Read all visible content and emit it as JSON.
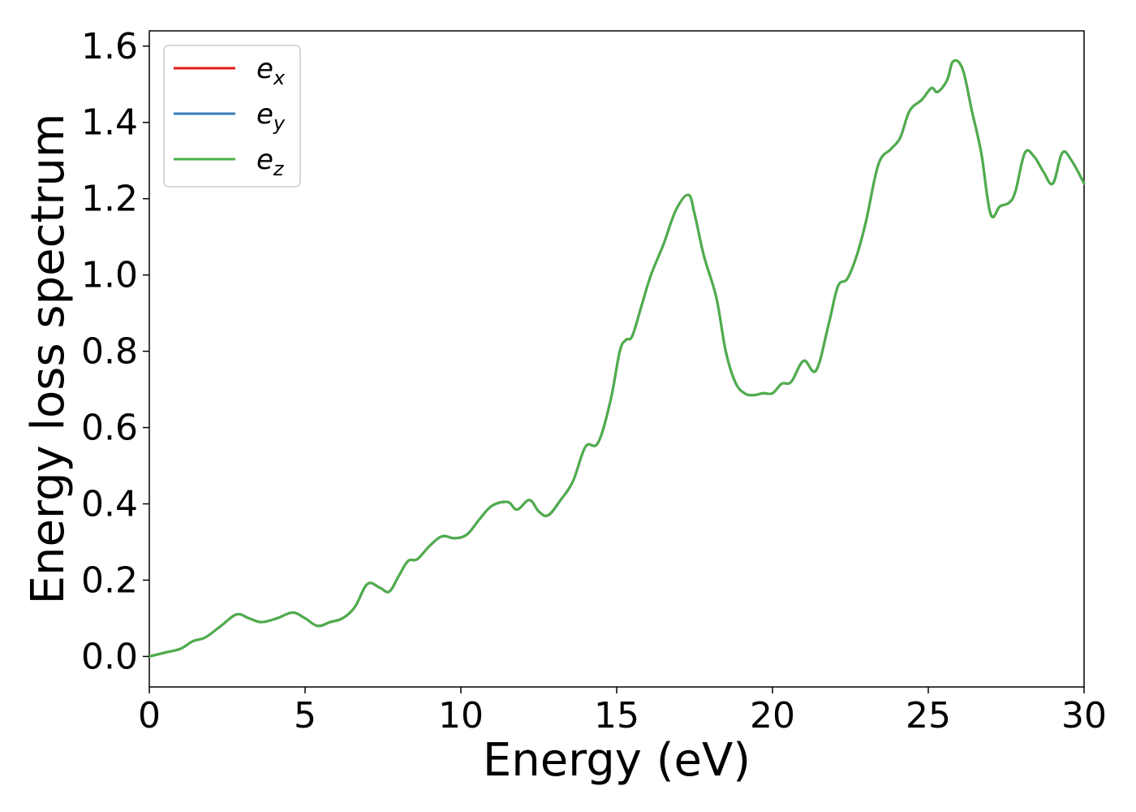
{
  "chart_data": {
    "type": "line",
    "title": "",
    "xlabel": "Energy (eV)",
    "ylabel": "Energy loss spectrum",
    "xlim": [
      0,
      30
    ],
    "ylim": [
      -0.08,
      1.64
    ],
    "x_ticks": [
      0,
      5,
      10,
      15,
      20,
      25,
      30
    ],
    "y_ticks": [
      0.0,
      0.2,
      0.4,
      0.6,
      0.8,
      1.0,
      1.2,
      1.4,
      1.6
    ],
    "x_tick_labels": [
      "0",
      "5",
      "10",
      "15",
      "20",
      "25",
      "30"
    ],
    "y_tick_labels": [
      "0.0",
      "0.2",
      "0.4",
      "0.6",
      "0.8",
      "1.0",
      "1.2",
      "1.4",
      "1.6"
    ],
    "grid": false,
    "legend_position": "upper-left",
    "series": [
      {
        "name": "e_x",
        "legend_base": "e",
        "legend_sub": "x",
        "color": "#e41a1c",
        "x": [
          0,
          0.5,
          1.0,
          1.4,
          1.8,
          2.3,
          2.8,
          3.2,
          3.6,
          4.1,
          4.6,
          5.0,
          5.4,
          5.8,
          6.2,
          6.6,
          7.0,
          7.4,
          7.7,
          8.0,
          8.3,
          8.6,
          9.0,
          9.4,
          9.8,
          10.2,
          10.6,
          11.0,
          11.5,
          11.8,
          12.2,
          12.5,
          12.8,
          13.2,
          13.6,
          14.0,
          14.4,
          14.8,
          15.1,
          15.3,
          15.5,
          15.8,
          16.1,
          16.5,
          16.9,
          17.3,
          17.5,
          17.8,
          18.2,
          18.5,
          18.8,
          19.1,
          19.4,
          19.7,
          20.0,
          20.3,
          20.6,
          21.0,
          21.4,
          21.8,
          22.1,
          22.4,
          22.7,
          23.0,
          23.4,
          23.8,
          24.1,
          24.4,
          24.8,
          25.1,
          25.3,
          25.6,
          25.8,
          26.1,
          26.4,
          26.7,
          27.0,
          27.3,
          27.6,
          27.8,
          28.1,
          28.4,
          28.7,
          29.0,
          29.3,
          29.6,
          30.0
        ],
        "y": [
          0.0,
          0.01,
          0.02,
          0.04,
          0.05,
          0.08,
          0.11,
          0.1,
          0.09,
          0.1,
          0.115,
          0.1,
          0.08,
          0.09,
          0.1,
          0.13,
          0.19,
          0.18,
          0.17,
          0.21,
          0.25,
          0.255,
          0.29,
          0.315,
          0.31,
          0.32,
          0.36,
          0.395,
          0.405,
          0.385,
          0.41,
          0.38,
          0.37,
          0.41,
          0.46,
          0.55,
          0.56,
          0.67,
          0.8,
          0.83,
          0.84,
          0.92,
          1.0,
          1.08,
          1.17,
          1.21,
          1.16,
          1.05,
          0.94,
          0.8,
          0.72,
          0.69,
          0.685,
          0.69,
          0.69,
          0.715,
          0.72,
          0.775,
          0.75,
          0.87,
          0.97,
          0.99,
          1.05,
          1.14,
          1.29,
          1.33,
          1.36,
          1.43,
          1.46,
          1.49,
          1.48,
          1.51,
          1.56,
          1.54,
          1.43,
          1.32,
          1.16,
          1.18,
          1.19,
          1.22,
          1.32,
          1.31,
          1.27,
          1.24,
          1.32,
          1.3,
          1.24
        ]
      },
      {
        "name": "e_y",
        "legend_base": "e",
        "legend_sub": "y",
        "color": "#377eb8",
        "same_as": "e_x"
      },
      {
        "name": "e_z",
        "legend_base": "e",
        "legend_sub": "z",
        "color": "#4daf4a",
        "same_as": "e_x"
      }
    ]
  }
}
